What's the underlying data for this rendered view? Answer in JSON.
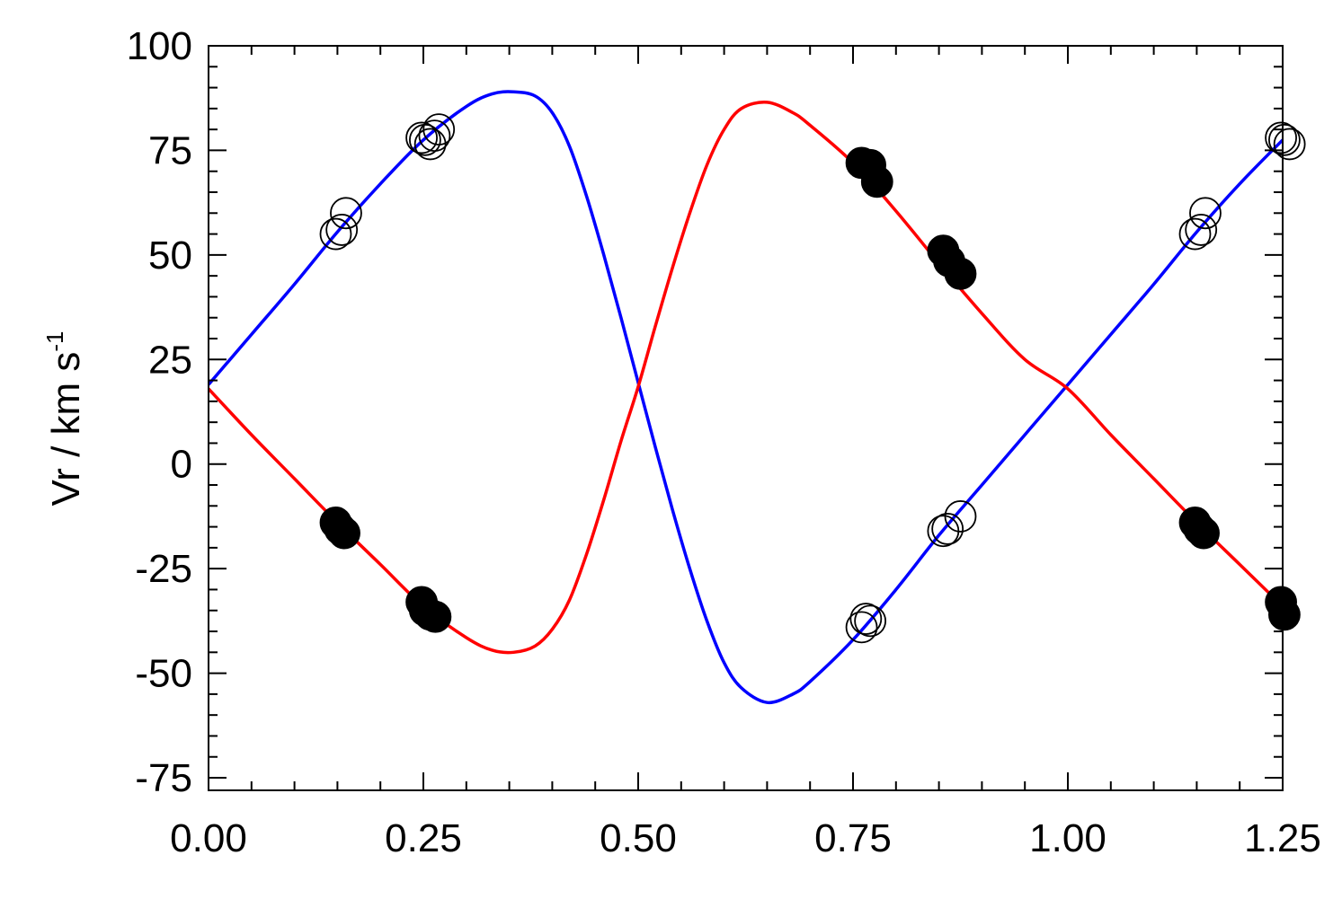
{
  "chart_data": {
    "type": "scatter",
    "xlim": [
      0.0,
      1.25
    ],
    "ylim": [
      -78,
      100
    ],
    "ylabel": {
      "main": "Vr / km s",
      "superscript": "-1"
    },
    "xlabel": "",
    "xticks": [
      0.0,
      0.25,
      0.5,
      0.75,
      1.0,
      1.25
    ],
    "xtick_labels": [
      "0.00",
      "0.25",
      "0.50",
      "0.75",
      "1.00",
      "1.25"
    ],
    "yticks": [
      -75,
      -50,
      -25,
      0,
      25,
      50,
      75,
      100
    ],
    "ytick_labels": [
      "-75",
      "-50",
      "-25",
      "0",
      "25",
      "50",
      "75",
      "100"
    ],
    "grid": false,
    "series": [
      {
        "kind": "line",
        "color": "#0000ff",
        "x": [
          0.0,
          0.05,
          0.1,
          0.15,
          0.2,
          0.25,
          0.3,
          0.33,
          0.355,
          0.38,
          0.4,
          0.42,
          0.44,
          0.46,
          0.48,
          0.5,
          0.52,
          0.54,
          0.56,
          0.58,
          0.6,
          0.62,
          0.65,
          0.68,
          0.7,
          0.75,
          0.8,
          0.85,
          0.9,
          0.95,
          1.0,
          1.05,
          1.1,
          1.15,
          1.2,
          1.25
        ],
        "y": [
          19,
          31,
          43,
          55.5,
          67,
          77.5,
          85.5,
          88.5,
          89,
          88,
          84,
          76,
          64,
          50,
          35,
          19.5,
          4,
          -11,
          -25,
          -37.5,
          -47.5,
          -53.5,
          -57,
          -55,
          -52,
          -42,
          -30,
          -17,
          -5,
          7,
          19,
          31,
          43,
          55.5,
          67,
          77.5
        ]
      },
      {
        "kind": "line",
        "color": "#ff0000",
        "x": [
          0.0,
          0.05,
          0.1,
          0.15,
          0.2,
          0.25,
          0.3,
          0.33,
          0.355,
          0.38,
          0.4,
          0.42,
          0.44,
          0.46,
          0.48,
          0.5,
          0.52,
          0.54,
          0.56,
          0.58,
          0.6,
          0.62,
          0.65,
          0.68,
          0.7,
          0.75,
          0.8,
          0.85,
          0.9,
          0.95,
          1.0,
          1.05,
          1.1,
          1.15,
          1.2,
          1.25
        ],
        "y": [
          18,
          7,
          -3.5,
          -14,
          -24,
          -34,
          -41.5,
          -44.5,
          -45,
          -43.5,
          -39.5,
          -32.5,
          -21.5,
          -8.5,
          5.5,
          18.5,
          33,
          47,
          60,
          71.5,
          80,
          85,
          86.5,
          84,
          81,
          72,
          60.5,
          48,
          36,
          25,
          18,
          7,
          -3.5,
          -14,
          -24,
          -34
        ]
      },
      {
        "kind": "points",
        "marker": "open-circle",
        "color": "#000000",
        "x": [
          0.148,
          0.155,
          0.16,
          0.248,
          0.252,
          0.258,
          0.263,
          0.268,
          0.76,
          0.765,
          0.77,
          0.855,
          0.86,
          0.875,
          1.148,
          1.155,
          1.16,
          1.248,
          1.252,
          1.258
        ],
        "y": [
          55,
          56,
          60,
          78,
          77.5,
          76.5,
          78.5,
          80,
          -39,
          -37,
          -37.5,
          -16,
          -15.5,
          -12.5,
          55,
          56,
          60,
          78,
          77.5,
          76.5
        ]
      },
      {
        "kind": "points",
        "marker": "filled-circle",
        "color": "#000000",
        "x": [
          0.148,
          0.153,
          0.158,
          0.248,
          0.252,
          0.258,
          0.264,
          0.76,
          0.77,
          0.778,
          0.855,
          0.862,
          0.875,
          1.148,
          1.153,
          1.158,
          1.248,
          1.252
        ],
        "y": [
          -14,
          -15.5,
          -16.5,
          -33,
          -35,
          -36,
          -36.5,
          72,
          71.5,
          67.5,
          51,
          48.5,
          45.5,
          -14,
          -15.5,
          -16.5,
          -33,
          -36
        ]
      }
    ]
  }
}
